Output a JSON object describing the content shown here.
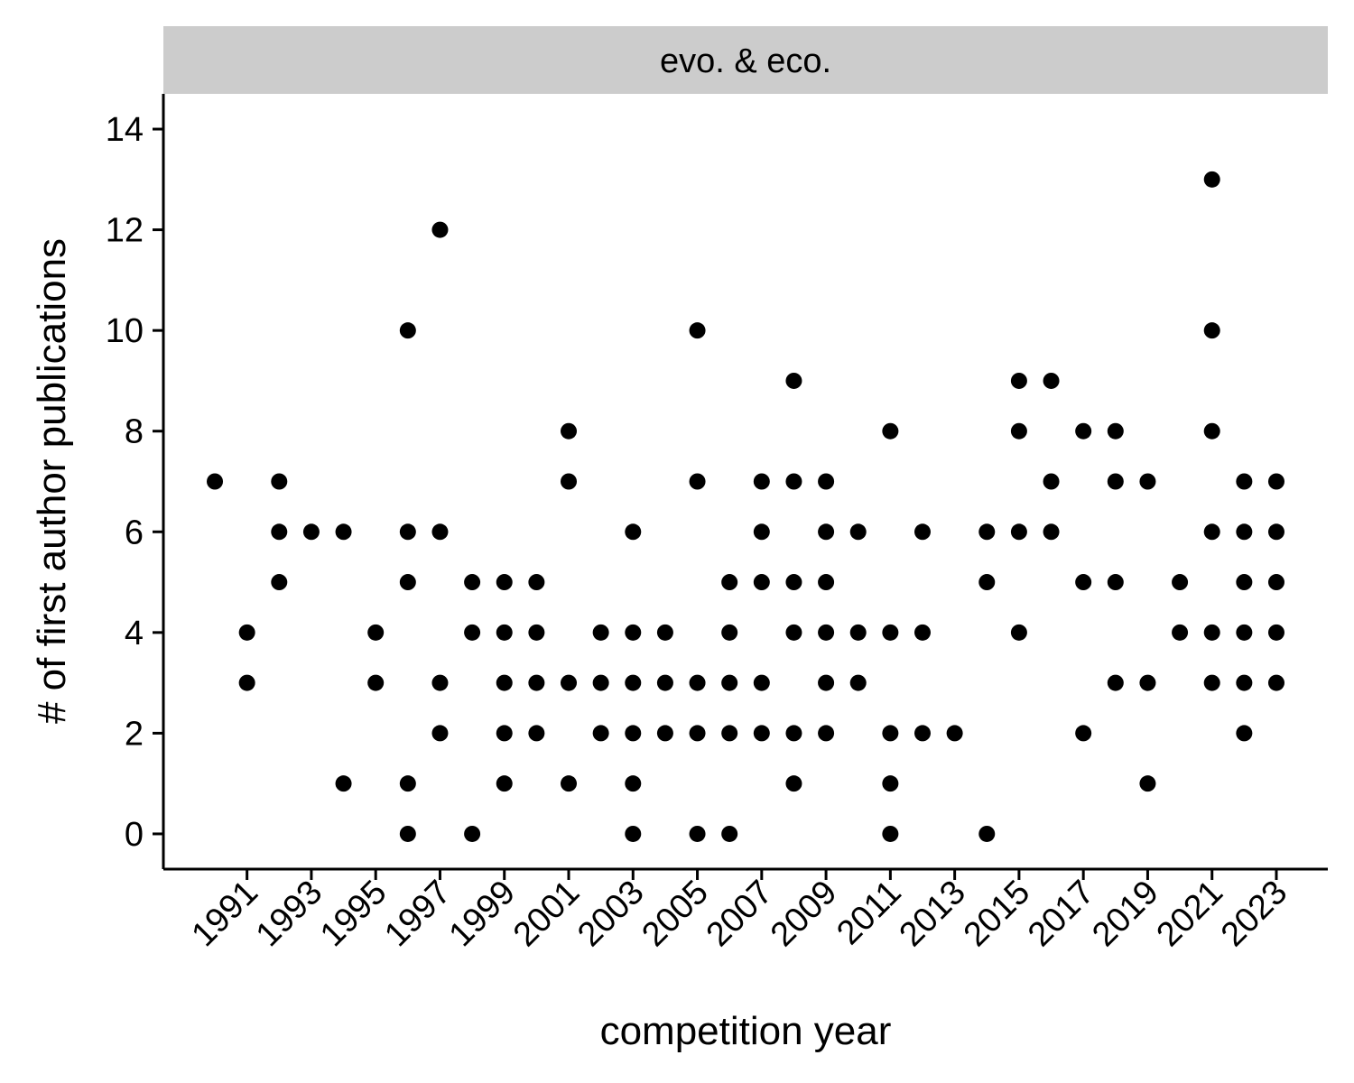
{
  "chart_data": {
    "type": "scatter",
    "facet_label": "evo. & eco.",
    "xlabel": "competition year",
    "ylabel": "# of first author publications",
    "xlim": [
      1988.4,
      2024.6
    ],
    "ylim": [
      -0.7,
      14.7
    ],
    "x_ticks": [
      1991,
      1993,
      1995,
      1997,
      1999,
      2001,
      2003,
      2005,
      2007,
      2009,
      2011,
      2013,
      2015,
      2017,
      2019,
      2021,
      2023
    ],
    "y_ticks": [
      0,
      2,
      4,
      6,
      8,
      10,
      12,
      14
    ],
    "grid": false,
    "legend": "none",
    "colors": {
      "points": "#000000",
      "strip": "#cccccc",
      "axis": "#000000"
    },
    "points": [
      {
        "x": 1990,
        "y": 7
      },
      {
        "x": 1991,
        "y": 4
      },
      {
        "x": 1991,
        "y": 3
      },
      {
        "x": 1992,
        "y": 7
      },
      {
        "x": 1992,
        "y": 6
      },
      {
        "x": 1992,
        "y": 5
      },
      {
        "x": 1993,
        "y": 6
      },
      {
        "x": 1994,
        "y": 6
      },
      {
        "x": 1994,
        "y": 1
      },
      {
        "x": 1995,
        "y": 4
      },
      {
        "x": 1995,
        "y": 3
      },
      {
        "x": 1996,
        "y": 10
      },
      {
        "x": 1996,
        "y": 6
      },
      {
        "x": 1996,
        "y": 5
      },
      {
        "x": 1996,
        "y": 1
      },
      {
        "x": 1996,
        "y": 0
      },
      {
        "x": 1997,
        "y": 12
      },
      {
        "x": 1997,
        "y": 6
      },
      {
        "x": 1997,
        "y": 3
      },
      {
        "x": 1997,
        "y": 2
      },
      {
        "x": 1998,
        "y": 5
      },
      {
        "x": 1998,
        "y": 4
      },
      {
        "x": 1998,
        "y": 0
      },
      {
        "x": 1999,
        "y": 5
      },
      {
        "x": 1999,
        "y": 4
      },
      {
        "x": 1999,
        "y": 3
      },
      {
        "x": 1999,
        "y": 2
      },
      {
        "x": 1999,
        "y": 1
      },
      {
        "x": 2000,
        "y": 5
      },
      {
        "x": 2000,
        "y": 4
      },
      {
        "x": 2000,
        "y": 3
      },
      {
        "x": 2000,
        "y": 2
      },
      {
        "x": 2001,
        "y": 8
      },
      {
        "x": 2001,
        "y": 7
      },
      {
        "x": 2001,
        "y": 3
      },
      {
        "x": 2001,
        "y": 1
      },
      {
        "x": 2002,
        "y": 4
      },
      {
        "x": 2002,
        "y": 3
      },
      {
        "x": 2002,
        "y": 2
      },
      {
        "x": 2003,
        "y": 6
      },
      {
        "x": 2003,
        "y": 4
      },
      {
        "x": 2003,
        "y": 3
      },
      {
        "x": 2003,
        "y": 2
      },
      {
        "x": 2003,
        "y": 1
      },
      {
        "x": 2003,
        "y": 0
      },
      {
        "x": 2004,
        "y": 4
      },
      {
        "x": 2004,
        "y": 3
      },
      {
        "x": 2004,
        "y": 2
      },
      {
        "x": 2005,
        "y": 10
      },
      {
        "x": 2005,
        "y": 7
      },
      {
        "x": 2005,
        "y": 3
      },
      {
        "x": 2005,
        "y": 2
      },
      {
        "x": 2005,
        "y": 0
      },
      {
        "x": 2006,
        "y": 5
      },
      {
        "x": 2006,
        "y": 4
      },
      {
        "x": 2006,
        "y": 3
      },
      {
        "x": 2006,
        "y": 2
      },
      {
        "x": 2006,
        "y": 0
      },
      {
        "x": 2007,
        "y": 7
      },
      {
        "x": 2007,
        "y": 6
      },
      {
        "x": 2007,
        "y": 5
      },
      {
        "x": 2007,
        "y": 3
      },
      {
        "x": 2007,
        "y": 2
      },
      {
        "x": 2008,
        "y": 9
      },
      {
        "x": 2008,
        "y": 7
      },
      {
        "x": 2008,
        "y": 5
      },
      {
        "x": 2008,
        "y": 4
      },
      {
        "x": 2008,
        "y": 2
      },
      {
        "x": 2008,
        "y": 1
      },
      {
        "x": 2009,
        "y": 7
      },
      {
        "x": 2009,
        "y": 6
      },
      {
        "x": 2009,
        "y": 5
      },
      {
        "x": 2009,
        "y": 4
      },
      {
        "x": 2009,
        "y": 3
      },
      {
        "x": 2009,
        "y": 2
      },
      {
        "x": 2010,
        "y": 6
      },
      {
        "x": 2010,
        "y": 4
      },
      {
        "x": 2010,
        "y": 3
      },
      {
        "x": 2011,
        "y": 8
      },
      {
        "x": 2011,
        "y": 4
      },
      {
        "x": 2011,
        "y": 2
      },
      {
        "x": 2011,
        "y": 1
      },
      {
        "x": 2011,
        "y": 0
      },
      {
        "x": 2012,
        "y": 6
      },
      {
        "x": 2012,
        "y": 4
      },
      {
        "x": 2012,
        "y": 2
      },
      {
        "x": 2013,
        "y": 2
      },
      {
        "x": 2014,
        "y": 6
      },
      {
        "x": 2014,
        "y": 5
      },
      {
        "x": 2014,
        "y": 0
      },
      {
        "x": 2015,
        "y": 9
      },
      {
        "x": 2015,
        "y": 8
      },
      {
        "x": 2015,
        "y": 6
      },
      {
        "x": 2015,
        "y": 4
      },
      {
        "x": 2016,
        "y": 9
      },
      {
        "x": 2016,
        "y": 7
      },
      {
        "x": 2016,
        "y": 6
      },
      {
        "x": 2017,
        "y": 8
      },
      {
        "x": 2017,
        "y": 5
      },
      {
        "x": 2017,
        "y": 2
      },
      {
        "x": 2018,
        "y": 8
      },
      {
        "x": 2018,
        "y": 7
      },
      {
        "x": 2018,
        "y": 5
      },
      {
        "x": 2018,
        "y": 3
      },
      {
        "x": 2019,
        "y": 7
      },
      {
        "x": 2019,
        "y": 3
      },
      {
        "x": 2019,
        "y": 1
      },
      {
        "x": 2020,
        "y": 5
      },
      {
        "x": 2020,
        "y": 4
      },
      {
        "x": 2021,
        "y": 13
      },
      {
        "x": 2021,
        "y": 10
      },
      {
        "x": 2021,
        "y": 8
      },
      {
        "x": 2021,
        "y": 6
      },
      {
        "x": 2021,
        "y": 4
      },
      {
        "x": 2021,
        "y": 3
      },
      {
        "x": 2022,
        "y": 7
      },
      {
        "x": 2022,
        "y": 6
      },
      {
        "x": 2022,
        "y": 5
      },
      {
        "x": 2022,
        "y": 4
      },
      {
        "x": 2022,
        "y": 3
      },
      {
        "x": 2022,
        "y": 2
      },
      {
        "x": 2023,
        "y": 7
      },
      {
        "x": 2023,
        "y": 6
      },
      {
        "x": 2023,
        "y": 5
      },
      {
        "x": 2023,
        "y": 4
      },
      {
        "x": 2023,
        "y": 3
      }
    ]
  }
}
